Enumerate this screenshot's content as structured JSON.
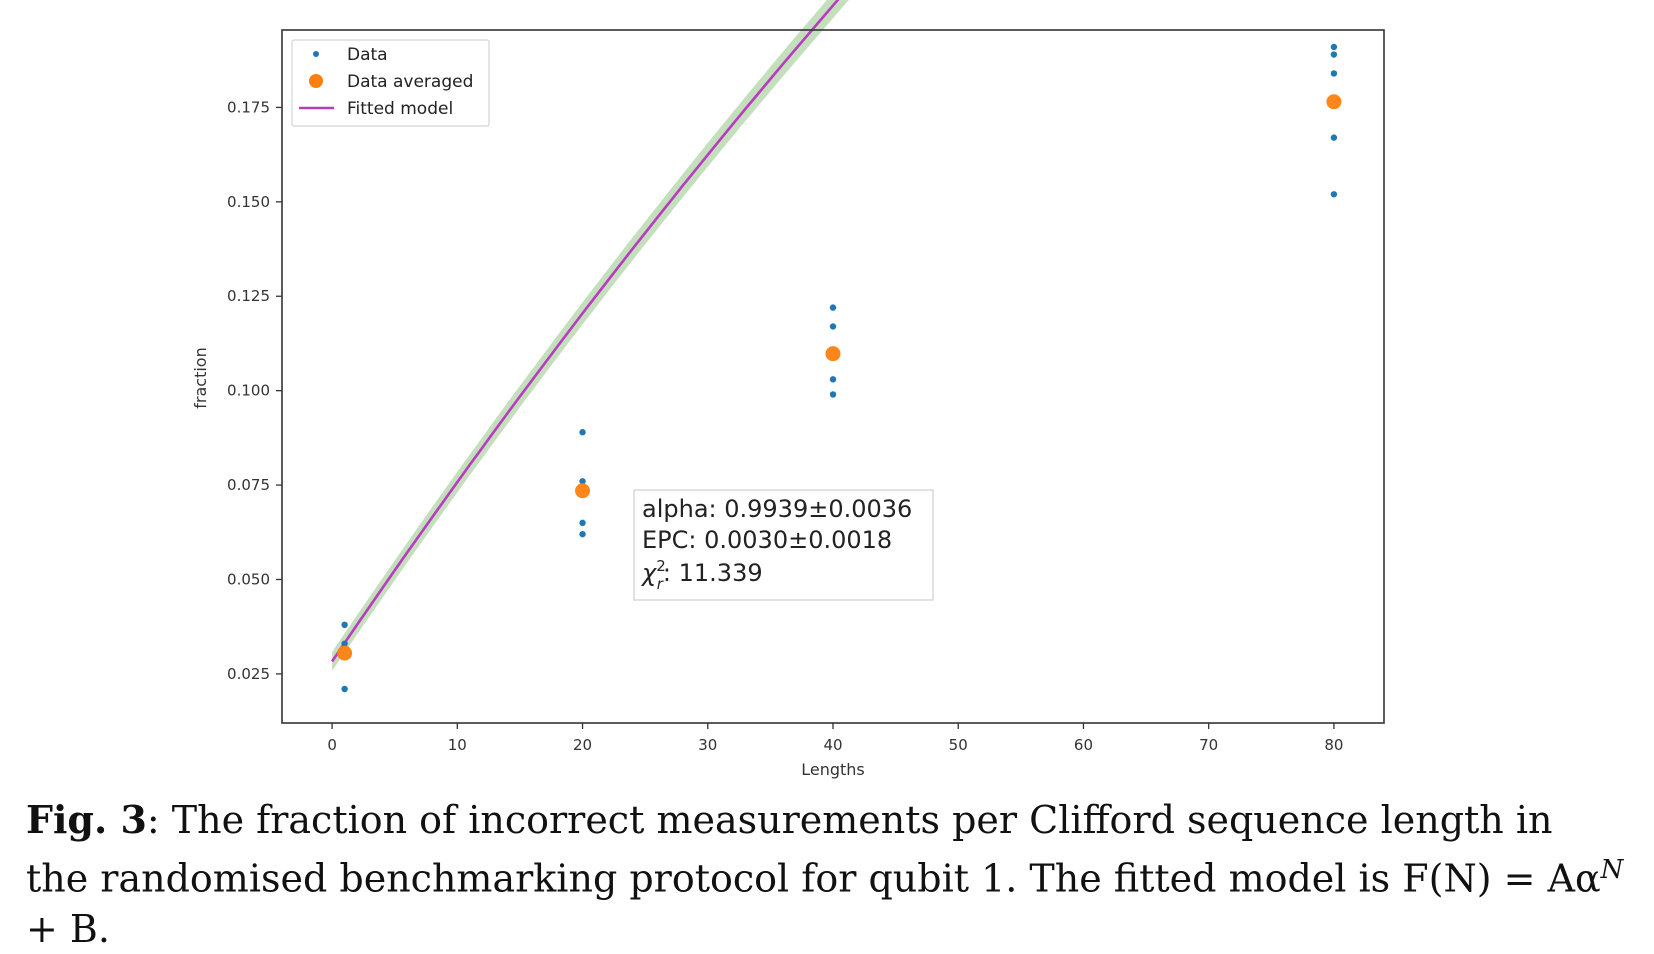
{
  "chart_data": {
    "type": "scatter",
    "xlabel": "Lengths",
    "ylabel": "fraction",
    "xlim": [
      -4,
      84
    ],
    "ylim": [
      0.012,
      0.1955
    ],
    "xticks": [
      0,
      10,
      20,
      30,
      40,
      50,
      60,
      70,
      80
    ],
    "yticks": [
      0.025,
      0.05,
      0.075,
      0.1,
      0.125,
      0.15,
      0.175
    ],
    "ytick_labels": [
      "0.025",
      "0.050",
      "0.075",
      "0.100",
      "0.125",
      "0.150",
      "0.175"
    ],
    "grid": false,
    "legend_position": "top-left",
    "series": [
      {
        "name": "Data",
        "kind": "scatter",
        "color": "#1f77b4",
        "points": [
          [
            1,
            0.038
          ],
          [
            1,
            0.033
          ],
          [
            1,
            0.021
          ],
          [
            20,
            0.089
          ],
          [
            20,
            0.076
          ],
          [
            20,
            0.065
          ],
          [
            20,
            0.062
          ],
          [
            40,
            0.122
          ],
          [
            40,
            0.117
          ],
          [
            40,
            0.103
          ],
          [
            40,
            0.099
          ],
          [
            80,
            0.191
          ],
          [
            80,
            0.189
          ],
          [
            80,
            0.184
          ],
          [
            80,
            0.167
          ],
          [
            80,
            0.152
          ]
        ]
      },
      {
        "name": "Data averaged",
        "kind": "scatter",
        "color": "#ff7f0e",
        "points": [
          [
            1,
            0.0305
          ],
          [
            20,
            0.0735
          ],
          [
            40,
            0.1098
          ],
          [
            80,
            0.1765
          ]
        ]
      },
      {
        "name": "Fitted model",
        "kind": "line",
        "color": "#b83cbf",
        "model": {
          "A": -0.8,
          "alpha": 0.9939,
          "B": 0.8283
        },
        "x_range": [
          0,
          80
        ],
        "band_color": "#b8d9b0",
        "band_halfwidth": [
          0.0025,
          0.0042
        ]
      }
    ],
    "annotation": {
      "line1": "alpha: 0.9939±0.0036",
      "line2": "EPC: 0.0030±0.0018",
      "chi_symbol": "χ",
      "chi_sup": "2",
      "chi_sub": "r",
      "chi_value": ": 11.339"
    }
  },
  "caption": {
    "label": "Fig. 3",
    "text": ": The fraction of incorrect measurements per Clifford sequence length in the randomised benchmarking protocol for qubit 1. The fitted model is F(N) = Aα",
    "superscript": "N",
    "text_end": " + B."
  }
}
